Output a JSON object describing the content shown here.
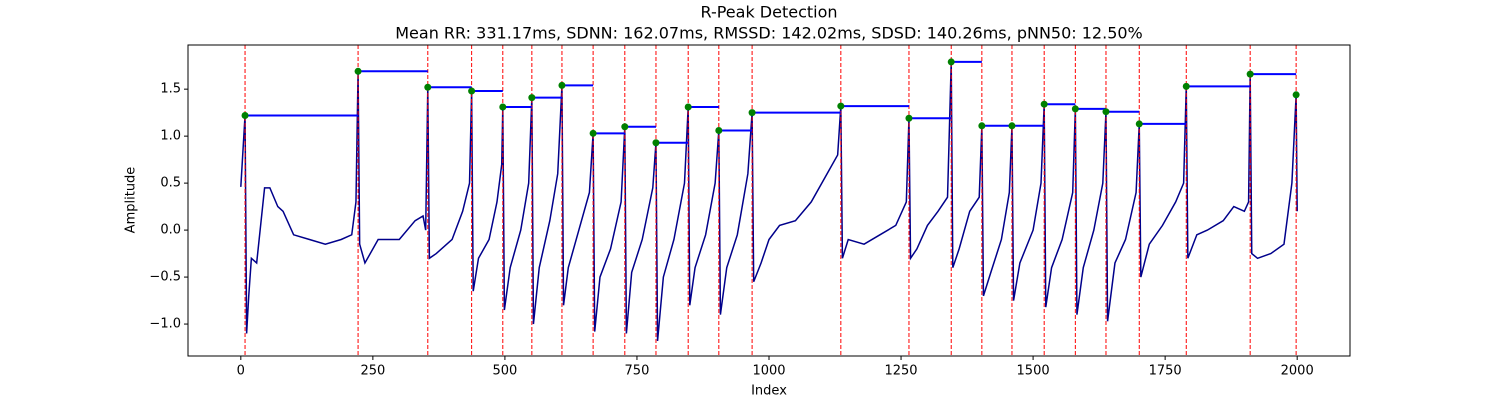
{
  "chart_data": {
    "type": "line",
    "title": "R-Peak Detection",
    "subtitle": "Mean RR: 331.17ms, SDNN: 162.07ms, RMSSD: 142.02ms, SDSD: 140.26ms, pNN50: 12.50%",
    "x_label": "Index",
    "y_label": "Amplitude",
    "xlim": [
      -100,
      2100
    ],
    "ylim": [
      -1.34,
      1.97
    ],
    "xticks": [
      0,
      250,
      500,
      750,
      1000,
      1250,
      1500,
      1750,
      2000
    ],
    "yticks": [
      {
        "value": -1.0,
        "label": "−1.0"
      },
      {
        "value": -0.5,
        "label": "−0.5"
      },
      {
        "value": 0.0,
        "label": "0.0"
      },
      {
        "value": 0.5,
        "label": "0.5"
      },
      {
        "value": 1.0,
        "label": "1.0"
      },
      {
        "value": 1.5,
        "label": "1.5"
      }
    ],
    "x": [
      0,
      8,
      11,
      15,
      20,
      30,
      45,
      55,
      70,
      80,
      100,
      130,
      160,
      190,
      210,
      218,
      222,
      225,
      235,
      260,
      300,
      330,
      345,
      350,
      354,
      357,
      370,
      400,
      420,
      433,
      437,
      440,
      450,
      470,
      485,
      494,
      496,
      499,
      510,
      530,
      545,
      551,
      554,
      565,
      585,
      600,
      608,
      611,
      620,
      640,
      660,
      667,
      670,
      680,
      700,
      720,
      727,
      730,
      740,
      760,
      780,
      786,
      789,
      800,
      820,
      840,
      847,
      850,
      860,
      880,
      898,
      905,
      908,
      920,
      940,
      960,
      968,
      971,
      985,
      1000,
      1020,
      1050,
      1080,
      1110,
      1130,
      1136,
      1139,
      1150,
      1180,
      1210,
      1240,
      1260,
      1265,
      1268,
      1280,
      1300,
      1320,
      1338,
      1345,
      1348,
      1360,
      1380,
      1398,
      1403,
      1406,
      1420,
      1440,
      1455,
      1460,
      1463,
      1475,
      1500,
      1515,
      1521,
      1524,
      1535,
      1555,
      1575,
      1580,
      1583,
      1595,
      1615,
      1632,
      1638,
      1641,
      1655,
      1675,
      1695,
      1701,
      1704,
      1720,
      1745,
      1770,
      1785,
      1790,
      1793,
      1810,
      1830,
      1860,
      1880,
      1900,
      1908,
      1911,
      1914,
      1925,
      1950,
      1975,
      1990,
      1998,
      2000
    ],
    "series": [
      {
        "color": "#00008b",
        "values": [
          0.46,
          1.22,
          -1.1,
          -0.7,
          -0.3,
          -0.35,
          0.45,
          0.45,
          0.25,
          0.2,
          -0.05,
          -0.1,
          -0.15,
          -0.1,
          -0.05,
          0.3,
          1.69,
          -0.15,
          -0.35,
          -0.1,
          -0.1,
          0.1,
          0.15,
          0.0,
          1.52,
          -0.3,
          -0.25,
          -0.1,
          0.2,
          0.5,
          1.48,
          -0.65,
          -0.3,
          -0.1,
          0.3,
          0.7,
          1.31,
          -0.85,
          -0.4,
          0.0,
          0.5,
          1.41,
          -1.0,
          -0.4,
          0.1,
          0.6,
          1.54,
          -0.8,
          -0.4,
          0.0,
          0.4,
          1.03,
          -1.08,
          -0.5,
          -0.2,
          0.3,
          1.1,
          -1.1,
          -0.45,
          -0.1,
          0.45,
          0.93,
          -1.18,
          -0.5,
          -0.1,
          0.5,
          1.31,
          -0.8,
          -0.4,
          -0.05,
          0.5,
          1.06,
          -0.9,
          -0.4,
          -0.05,
          0.6,
          1.25,
          -0.55,
          -0.35,
          -0.1,
          0.05,
          0.1,
          0.3,
          0.6,
          0.8,
          1.32,
          -0.3,
          -0.1,
          -0.15,
          -0.05,
          0.05,
          0.3,
          1.19,
          -0.3,
          -0.2,
          0.05,
          0.2,
          0.35,
          1.79,
          -0.4,
          -0.2,
          0.2,
          0.35,
          1.11,
          -0.7,
          -0.45,
          -0.1,
          0.4,
          1.11,
          -0.75,
          -0.35,
          0.0,
          0.5,
          1.34,
          -0.82,
          -0.4,
          -0.1,
          0.4,
          1.29,
          -0.9,
          -0.4,
          0.0,
          0.5,
          1.26,
          -0.97,
          -0.35,
          -0.1,
          0.4,
          1.13,
          -0.5,
          -0.15,
          0.05,
          0.3,
          0.5,
          1.53,
          -0.3,
          -0.05,
          0.0,
          0.1,
          0.25,
          0.2,
          0.3,
          1.66,
          -0.25,
          -0.3,
          -0.25,
          -0.15,
          0.5,
          1.44,
          0.2
        ]
      }
    ],
    "peaks": {
      "color": "green",
      "line_color": "red",
      "interval_color": "blue",
      "x": [
        8,
        222,
        354,
        437,
        496,
        551,
        608,
        667,
        727,
        786,
        847,
        905,
        968,
        1136,
        1265,
        1345,
        1403,
        1460,
        1521,
        1580,
        1638,
        1701,
        1790,
        1911,
        1998
      ],
      "values": [
        1.22,
        1.69,
        1.52,
        1.48,
        1.31,
        1.41,
        1.54,
        1.03,
        1.1,
        0.93,
        1.31,
        1.06,
        1.25,
        1.32,
        1.19,
        1.79,
        1.11,
        1.11,
        1.34,
        1.29,
        1.26,
        1.13,
        1.53,
        1.66,
        1.44
      ]
    }
  }
}
